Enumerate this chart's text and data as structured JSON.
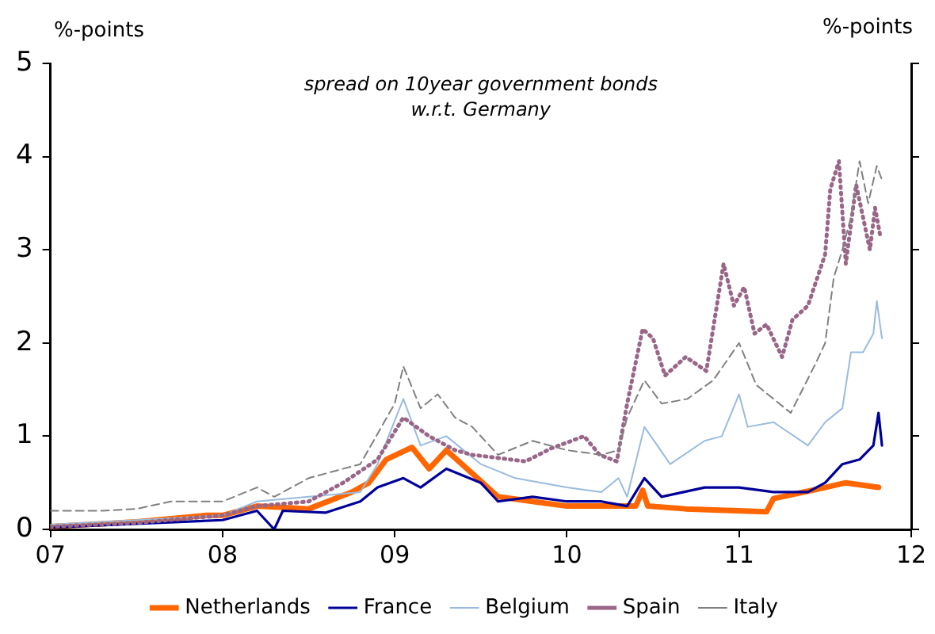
{
  "chart_data": {
    "type": "line",
    "title": "spread on 10year government bonds",
    "subtitle": "w.r.t. Germany",
    "ylabel": "%-points",
    "y2label": "%-points",
    "xlim": [
      2007,
      2012
    ],
    "xticks": [
      {
        "value": 2007,
        "label": "07"
      },
      {
        "value": 2008,
        "label": "08"
      },
      {
        "value": 2009,
        "label": "09"
      },
      {
        "value": 2010,
        "label": "10"
      },
      {
        "value": 2011,
        "label": "11"
      },
      {
        "value": 2012,
        "label": "12"
      }
    ],
    "ylim": [
      0,
      5
    ],
    "yticks": [
      0,
      1,
      2,
      3,
      4,
      5
    ],
    "grid": false,
    "legend": "bottom",
    "marker": "none",
    "series": [
      {
        "name": "Italy",
        "color": "#808080",
        "line_style": "dashed",
        "x": [
          2007,
          2007.3,
          2007.5,
          2007.7,
          2008,
          2008.2,
          2008.3,
          2008.5,
          2008.8,
          2009,
          2009.05,
          2009.15,
          2009.25,
          2009.35,
          2009.45,
          2009.6,
          2009.8,
          2010,
          2010.2,
          2010.3,
          2010.35,
          2010.45,
          2010.55,
          2010.7,
          2010.85,
          2011,
          2011.1,
          2011.3,
          2011.45,
          2011.5,
          2011.55,
          2011.6,
          2011.65,
          2011.7,
          2011.75,
          2011.8,
          2011.83
        ],
        "values": [
          0.2,
          0.2,
          0.22,
          0.3,
          0.3,
          0.45,
          0.35,
          0.55,
          0.7,
          1.35,
          1.75,
          1.3,
          1.45,
          1.2,
          1.1,
          0.8,
          0.95,
          0.85,
          0.8,
          0.85,
          1.2,
          1.6,
          1.35,
          1.4,
          1.6,
          2,
          1.55,
          1.25,
          1.8,
          2,
          2.7,
          3,
          3.35,
          3.95,
          3.5,
          3.9,
          3.75
        ]
      },
      {
        "name": "Spain",
        "color": "#996688",
        "line_style": "dotted",
        "x": [
          2007,
          2007.5,
          2008,
          2008.2,
          2008.5,
          2008.7,
          2008.9,
          2009.05,
          2009.2,
          2009.35,
          2009.45,
          2009.76,
          2009.91,
          2010.1,
          2010.19,
          2010.29,
          2010.35,
          2010.44,
          2010.5,
          2010.57,
          2010.69,
          2010.81,
          2010.91,
          2010.97,
          2011.03,
          2011.09,
          2011.16,
          2011.25,
          2011.31,
          2011.4,
          2011.5,
          2011.53,
          2011.58,
          2011.62,
          2011.68,
          2011.76,
          2011.79,
          2011.82
        ],
        "values": [
          0.03,
          0.07,
          0.15,
          0.25,
          0.3,
          0.5,
          0.75,
          1.2,
          1,
          0.85,
          0.8,
          0.73,
          0.87,
          1,
          0.8,
          0.73,
          1.35,
          2.15,
          2.05,
          1.65,
          1.85,
          1.7,
          2.85,
          2.4,
          2.6,
          2.1,
          2.2,
          1.85,
          2.25,
          2.4,
          2.95,
          3.65,
          3.95,
          2.85,
          3.7,
          3,
          3.45,
          3.15
        ]
      },
      {
        "name": "Belgium",
        "color": "#99bbdd",
        "line_style": "solid",
        "x": [
          2007,
          2007.5,
          2008,
          2008.2,
          2008.5,
          2008.8,
          2008.9,
          2009.05,
          2009.15,
          2009.3,
          2009.5,
          2009.7,
          2010,
          2010.2,
          2010.3,
          2010.35,
          2010.45,
          2010.6,
          2010.8,
          2010.9,
          2011,
          2011.05,
          2011.2,
          2011.4,
          2011.5,
          2011.6,
          2011.65,
          2011.72,
          2011.78,
          2011.8,
          2011.83
        ],
        "values": [
          0.05,
          0.1,
          0.15,
          0.3,
          0.35,
          0.4,
          0.7,
          1.4,
          0.9,
          1,
          0.7,
          0.55,
          0.45,
          0.4,
          0.55,
          0.35,
          1.1,
          0.7,
          0.95,
          1,
          1.45,
          1.1,
          1.15,
          0.9,
          1.15,
          1.3,
          1.9,
          1.9,
          2.1,
          2.45,
          2.05
        ]
      },
      {
        "name": "France",
        "color": "#000099",
        "line_style": "solid",
        "x": [
          2007,
          2007.5,
          2008,
          2008.2,
          2008.3,
          2008.35,
          2008.6,
          2008.8,
          2008.9,
          2009.05,
          2009.15,
          2009.3,
          2009.5,
          2009.6,
          2009.8,
          2010,
          2010.2,
          2010.35,
          2010.45,
          2010.55,
          2010.8,
          2011,
          2011.2,
          2011.4,
          2011.5,
          2011.6,
          2011.7,
          2011.78,
          2011.81,
          2011.83
        ],
        "values": [
          0.02,
          0.06,
          0.1,
          0.2,
          0,
          0.2,
          0.18,
          0.3,
          0.45,
          0.55,
          0.45,
          0.65,
          0.5,
          0.3,
          0.35,
          0.3,
          0.3,
          0.25,
          0.55,
          0.35,
          0.45,
          0.45,
          0.4,
          0.4,
          0.5,
          0.7,
          0.75,
          0.9,
          1.25,
          0.9
        ]
      },
      {
        "name": "Netherlands",
        "color": "#ff6600",
        "line_style": "solid",
        "x": [
          2007,
          2007.5,
          2007.9,
          2008,
          2008.2,
          2008.5,
          2008.75,
          2008.85,
          2008.95,
          2009.1,
          2009.2,
          2009.3,
          2009.45,
          2009.6,
          2009.8,
          2010,
          2010.2,
          2010.4,
          2010.44,
          2010.47,
          2010.69,
          2011.16,
          2011.2,
          2011.5,
          2011.62,
          2011.81
        ],
        "values": [
          0.03,
          0.08,
          0.15,
          0.15,
          0.25,
          0.22,
          0.4,
          0.5,
          0.75,
          0.88,
          0.65,
          0.85,
          0.6,
          0.35,
          0.3,
          0.25,
          0.25,
          0.25,
          0.42,
          0.25,
          0.22,
          0.19,
          0.33,
          0.45,
          0.5,
          0.45
        ]
      }
    ]
  }
}
